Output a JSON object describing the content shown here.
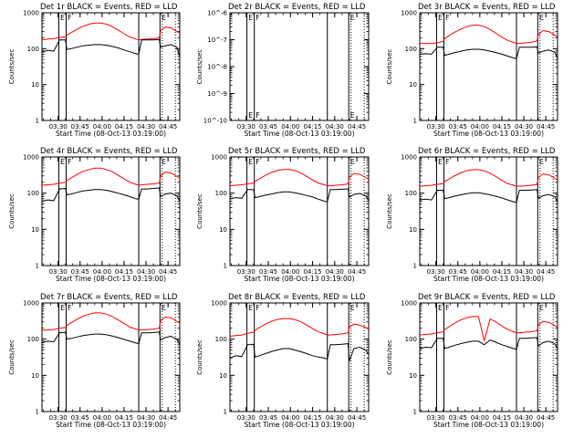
{
  "charts": [
    {
      "title": "Det 1r  BLACK = Events, RED = LLD",
      "ylabel": "Counts/sec",
      "xlabel": "Start Time (08-Oct-13 03:19:00)"
    },
    {
      "title": "Det 2r  BLACK = Events, RED = LLD",
      "ylabel": "Counts/sec",
      "xlabel": "Start Time (08-Oct-13 03:19:00)"
    },
    {
      "title": "Det 3r  BLACK = Events, RED = LLD",
      "ylabel": "Counts/sec",
      "xlabel": "Start Time (08-Oct-13 03:19:00)"
    },
    {
      "title": "Det 4r  BLACK = Events, RED = LLD",
      "ylabel": "Counts/sec",
      "xlabel": "Start Time (08-Oct-13 03:19:00)"
    },
    {
      "title": "Det 5r  BLACK = Events, RED = LLD",
      "ylabel": "Counts/sec",
      "xlabel": "Start Time (08-Oct-13 03:19:00)"
    },
    {
      "title": "Det 6r  BLACK = Events, RED = LLD",
      "ylabel": "Counts/sec",
      "xlabel": "Start Time (08-Oct-13 03:19:00)"
    },
    {
      "title": "Det 7r  BLACK = Events, RED = LLD",
      "ylabel": "Counts/sec",
      "xlabel": "Start Time (08-Oct-13 03:19:00)"
    },
    {
      "title": "Det 8r  BLACK = Events, RED = LLD",
      "ylabel": "Counts/sec",
      "xlabel": "Start Time (08-Oct-13 03:19:00)"
    },
    {
      "title": "Det 9r  BLACK = Events, RED = LLD",
      "ylabel": "Counts/sec",
      "xlabel": "Start Time (08-Oct-13 03:19:00)"
    }
  ],
  "chart_data": {
    "type": "line",
    "layout": "3x3 grid of panels",
    "x_axis": {
      "min": "03:19:00",
      "max": "04:53:00",
      "tick_labels": [
        "03:30",
        "03:45",
        "04:00",
        "04:15",
        "04:30",
        "04:45"
      ],
      "tick_minutes": [
        11,
        26,
        41,
        56,
        71,
        86
      ]
    },
    "y_axis": {
      "scale": "log",
      "range": [
        1,
        1000
      ],
      "tick_labels": [
        "1",
        "10",
        "100",
        "1000"
      ],
      "tick_values": [
        1,
        10,
        100,
        1000
      ]
    },
    "y_axis_det2": {
      "scale": "log",
      "range": [
        1e-10,
        1e-06
      ],
      "tick_labels": [
        "10^-10",
        "10^-9",
        "10^-8",
        "10^-7",
        "10^-6"
      ],
      "tick_values": [
        1e-10,
        1e-09,
        1e-08,
        1e-07,
        1e-06
      ]
    },
    "markers": [
      {
        "label": "E",
        "minute": 11.5,
        "style": "solid"
      },
      {
        "label": "F",
        "minute": 16.5,
        "style": "solid"
      },
      {
        "label": "",
        "minute": 66,
        "style": "solid"
      },
      {
        "label": "E",
        "minute": 80.5,
        "style": "solid"
      },
      {
        "label": "",
        "minute": 82,
        "style": "dotted"
      },
      {
        "label": "",
        "minute": 91,
        "style": "dotted"
      }
    ],
    "series": [
      {
        "color": "#000000",
        "role": "Events"
      },
      {
        "color": "#ff0000",
        "role": "LLD"
      }
    ],
    "x_minutes": [
      0,
      4,
      8,
      12,
      16,
      17,
      20,
      24,
      28,
      32,
      36,
      40,
      44,
      48,
      52,
      56,
      60,
      64,
      66,
      68,
      72,
      76,
      80,
      81,
      84,
      88,
      92,
      94
    ],
    "panels": [
      {
        "events": [
          80,
          90,
          85,
          175,
          175,
          95,
          100,
          110,
          120,
          125,
          130,
          130,
          125,
          115,
          105,
          92,
          82,
          72,
          70,
          175,
          175,
          175,
          180,
          110,
          120,
          130,
          110,
          60
        ],
        "lld": [
          175,
          185,
          190,
          205,
          215,
          240,
          280,
          350,
          420,
          480,
          520,
          520,
          480,
          410,
          330,
          260,
          210,
          185,
          175,
          180,
          185,
          190,
          200,
          320,
          400,
          380,
          300,
          270
        ]
      },
      {
        "events": [],
        "lld": []
      },
      {
        "events": [
          70,
          72,
          70,
          110,
          110,
          65,
          70,
          78,
          85,
          92,
          96,
          96,
          92,
          85,
          78,
          70,
          62,
          55,
          52,
          110,
          110,
          110,
          112,
          75,
          85,
          92,
          80,
          55
        ],
        "lld": [
          140,
          140,
          140,
          145,
          160,
          190,
          230,
          290,
          350,
          410,
          450,
          450,
          410,
          340,
          270,
          210,
          170,
          150,
          140,
          140,
          145,
          150,
          165,
          250,
          320,
          300,
          240,
          210
        ]
      },
      {
        "events": [
          60,
          65,
          62,
          130,
          135,
          90,
          95,
          105,
          115,
          120,
          125,
          125,
          120,
          110,
          100,
          90,
          80,
          70,
          68,
          130,
          130,
          135,
          140,
          80,
          95,
          100,
          85,
          60
        ],
        "lld": [
          165,
          170,
          175,
          190,
          200,
          225,
          265,
          330,
          400,
          450,
          490,
          490,
          450,
          390,
          310,
          250,
          200,
          175,
          165,
          170,
          175,
          180,
          190,
          300,
          380,
          360,
          290,
          260
        ]
      },
      {
        "events": [
          70,
          75,
          72,
          125,
          125,
          75,
          80,
          88,
          95,
          102,
          108,
          108,
          102,
          95,
          86,
          78,
          68,
          60,
          58,
          125,
          125,
          128,
          132,
          78,
          92,
          98,
          84,
          62
        ],
        "lld": [
          160,
          165,
          170,
          180,
          190,
          215,
          250,
          310,
          370,
          420,
          450,
          450,
          420,
          360,
          290,
          230,
          190,
          170,
          160,
          160,
          165,
          170,
          180,
          280,
          350,
          330,
          270,
          240
        ]
      },
      {
        "events": [
          65,
          68,
          65,
          120,
          120,
          70,
          75,
          83,
          90,
          97,
          103,
          103,
          97,
          90,
          82,
          74,
          65,
          58,
          55,
          120,
          120,
          122,
          125,
          72,
          85,
          92,
          80,
          58
        ],
        "lld": [
          155,
          160,
          165,
          175,
          185,
          210,
          245,
          305,
          365,
          415,
          445,
          445,
          415,
          355,
          285,
          225,
          185,
          165,
          155,
          155,
          160,
          165,
          175,
          270,
          340,
          320,
          260,
          230
        ]
      },
      {
        "events": [
          80,
          88,
          85,
          150,
          155,
          100,
          105,
          115,
          125,
          132,
          138,
          138,
          132,
          122,
          110,
          98,
          88,
          78,
          75,
          150,
          150,
          152,
          158,
          95,
          110,
          120,
          100,
          70
        ],
        "lld": [
          175,
          180,
          185,
          200,
          210,
          240,
          285,
          355,
          430,
          490,
          530,
          530,
          490,
          420,
          340,
          270,
          215,
          190,
          180,
          180,
          185,
          190,
          200,
          330,
          410,
          390,
          310,
          280
        ]
      },
      {
        "events": [
          30,
          35,
          33,
          70,
          72,
          32,
          35,
          40,
          45,
          50,
          55,
          55,
          50,
          45,
          40,
          35,
          32,
          30,
          28,
          70,
          70,
          72,
          75,
          25,
          55,
          60,
          50,
          38
        ],
        "lld": [
          120,
          125,
          130,
          145,
          155,
          175,
          210,
          260,
          310,
          350,
          370,
          370,
          350,
          300,
          245,
          195,
          160,
          140,
          130,
          130,
          135,
          140,
          150,
          220,
          260,
          245,
          210,
          190
        ]
      },
      {
        "events": [
          55,
          60,
          58,
          105,
          105,
          55,
          60,
          68,
          75,
          82,
          88,
          88,
          70,
          95,
          82,
          70,
          62,
          55,
          52,
          105,
          105,
          108,
          110,
          65,
          80,
          88,
          75,
          55
        ],
        "lld": [
          130,
          135,
          140,
          150,
          160,
          185,
          220,
          280,
          340,
          390,
          420,
          420,
          90,
          360,
          300,
          230,
          185,
          160,
          150,
          150,
          155,
          160,
          170,
          250,
          310,
          290,
          240,
          210
        ]
      }
    ]
  }
}
